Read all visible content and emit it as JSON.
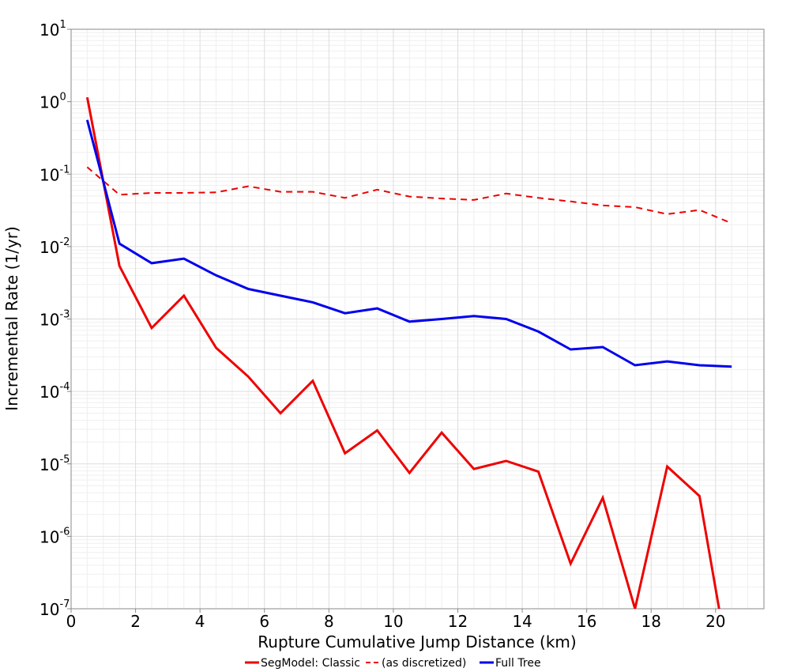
{
  "chart_data": {
    "type": "line",
    "title": "",
    "xlabel": "Rupture Cumulative Jump Distance (km)",
    "ylabel": "Incremental Rate (1/yr)",
    "xlim": [
      0,
      21.5
    ],
    "ylim": [
      1e-07,
      10
    ],
    "yscale": "log",
    "grid": true,
    "legend_position": "bottom-center",
    "x_ticks": [
      0,
      2,
      4,
      6,
      8,
      10,
      12,
      14,
      16,
      18,
      20
    ],
    "y_ticks": [
      {
        "base": "10",
        "exp": "1",
        "value": 10
      },
      {
        "base": "10",
        "exp": "0",
        "value": 1
      },
      {
        "base": "10",
        "exp": "-1",
        "value": 0.1
      },
      {
        "base": "10",
        "exp": "-2",
        "value": 0.01
      },
      {
        "base": "10",
        "exp": "-3",
        "value": 0.001
      },
      {
        "base": "10",
        "exp": "-4",
        "value": 0.0001
      },
      {
        "base": "10",
        "exp": "-5",
        "value": 1e-05
      },
      {
        "base": "10",
        "exp": "-6",
        "value": 1e-06
      },
      {
        "base": "10",
        "exp": "-7",
        "value": 1e-07
      }
    ],
    "series": [
      {
        "name": "SegModel: Classic",
        "color": "#ee0000",
        "style": "solid",
        "x": [
          0.5,
          1.5,
          2.5,
          3.5,
          4.5,
          5.5,
          6.5,
          7.5,
          8.5,
          9.5,
          10.5,
          11.5,
          12.5,
          13.5,
          14.5,
          15.5,
          16.5,
          17.5,
          18.5,
          19.5,
          20.5
        ],
        "y": [
          1.15,
          0.0054,
          0.00075,
          0.0021,
          0.0004,
          0.00016,
          5e-05,
          0.00014,
          1.4e-05,
          2.9e-05,
          7.5e-06,
          2.7e-05,
          8.5e-06,
          1.1e-05,
          7.8e-06,
          4.2e-07,
          3.4e-06,
          1e-07,
          9.2e-06,
          3.6e-06,
          1e-08
        ]
      },
      {
        "name": "(as discretized)",
        "color": "#ee0000",
        "style": "dashed",
        "x": [
          0.5,
          1.5,
          2.5,
          3.5,
          4.5,
          5.5,
          6.5,
          7.5,
          8.5,
          9.5,
          10.5,
          11.5,
          12.5,
          13.5,
          14.5,
          15.5,
          16.5,
          17.5,
          18.5,
          19.5,
          20.5
        ],
        "y": [
          0.125,
          0.052,
          0.055,
          0.055,
          0.056,
          0.068,
          0.057,
          0.057,
          0.047,
          0.061,
          0.049,
          0.046,
          0.044,
          0.054,
          0.047,
          0.042,
          0.037,
          0.035,
          0.028,
          0.032,
          0.021
        ]
      },
      {
        "name": "Full Tree",
        "color": "#0000ee",
        "style": "solid",
        "x": [
          0.5,
          1.5,
          2.5,
          3.5,
          4.5,
          5.5,
          6.5,
          7.5,
          8.5,
          9.5,
          10.5,
          11.5,
          12.5,
          13.5,
          14.5,
          15.5,
          16.5,
          17.5,
          18.5,
          19.5,
          20.5
        ],
        "y": [
          0.56,
          0.011,
          0.0059,
          0.0068,
          0.004,
          0.0026,
          0.0021,
          0.0017,
          0.0012,
          0.0014,
          0.00092,
          0.001,
          0.0011,
          0.001,
          0.00067,
          0.00038,
          0.00041,
          0.00023,
          0.00026,
          0.00023,
          0.00022
        ]
      }
    ]
  }
}
